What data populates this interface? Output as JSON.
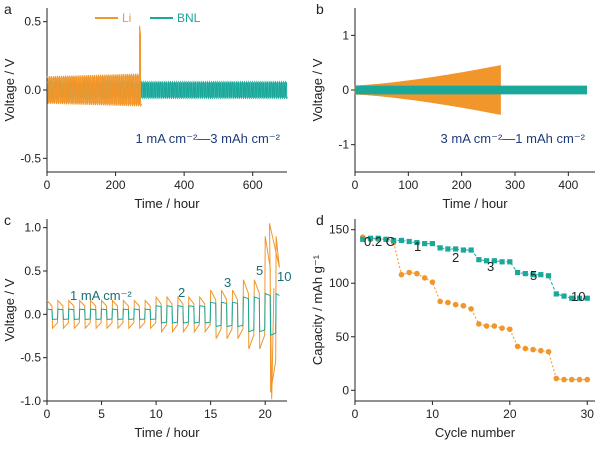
{
  "colors": {
    "li": "#f0962a",
    "bnl": "#1aa89a",
    "axis": "#222222",
    "condition_text": "#1f3a7a",
    "annotation_text": "#1a6e78"
  },
  "legend": {
    "li": "Li",
    "bnl": "BNL",
    "placement": "top-center"
  },
  "chart_data": [
    {
      "panel": "a",
      "type": "line",
      "xlabel": "Time / hour",
      "ylabel": "Voltage / V",
      "xlim": [
        0,
        700
      ],
      "ylim": [
        -0.6,
        0.6
      ],
      "xticks": [
        "0",
        "200",
        "400",
        "600"
      ],
      "yticks": [
        "-0.5",
        "0.0",
        "0.5"
      ],
      "condition": "1 mA cm⁻²—3 mAh cm⁻²",
      "series": [
        {
          "name": "Li",
          "end_hour": 275,
          "amplitude_start": 0.1,
          "amplitude_end": 0.12,
          "spike_hour": 272,
          "spike_value": 0.47
        },
        {
          "name": "BNL",
          "end_hour": 700,
          "amplitude": 0.06
        }
      ]
    },
    {
      "panel": "b",
      "type": "line",
      "xlabel": "Time / hour",
      "ylabel": "Voltage / V",
      "xlim": [
        0,
        450
      ],
      "ylim": [
        -1.5,
        1.5
      ],
      "xticks": [
        "0",
        "100",
        "200",
        "300",
        "400"
      ],
      "yticks": [
        "-1",
        "0",
        "1"
      ],
      "condition": "3 mA cm⁻²—1 mAh cm⁻²",
      "series": [
        {
          "name": "Li",
          "end_hour": 273,
          "amplitude_start": 0.08,
          "amplitude_end": 0.45
        },
        {
          "name": "BNL",
          "end_hour": 435,
          "amplitude": 0.08
        }
      ]
    },
    {
      "panel": "c",
      "type": "line",
      "xlabel": "Time / hour",
      "ylabel": "Voltage / V",
      "xlim": [
        0,
        22
      ],
      "ylim": [
        -1.0,
        1.1
      ],
      "xticks": [
        "0",
        "5",
        "10",
        "15",
        "20"
      ],
      "yticks": [
        "-1.0",
        "-0.5",
        "0.0",
        "0.5",
        "1.0"
      ],
      "annotations": [
        "1 mA cm⁻²",
        "2",
        "3",
        "5",
        "10"
      ],
      "rate_steps": [
        {
          "label": "1 mA cm⁻²",
          "start": 0,
          "end": 10,
          "li_amp": 0.16,
          "bnl_amp": 0.06
        },
        {
          "label": "2",
          "start": 10,
          "end": 15,
          "li_amp": 0.2,
          "bnl_amp": 0.1
        },
        {
          "label": "3",
          "start": 15,
          "end": 18,
          "li_amp": 0.28,
          "bnl_amp": 0.14
        },
        {
          "label": "5",
          "start": 18,
          "end": 20,
          "li_amp": 0.4,
          "bnl_amp": 0.2
        },
        {
          "label": "10",
          "start": 20,
          "end": 21.3,
          "li_amp": 0.9,
          "bnl_amp": 0.24
        }
      ]
    },
    {
      "panel": "d",
      "type": "scatter",
      "xlabel": "Cycle number",
      "ylabel": "Capacity / mAh g⁻¹",
      "xlim": [
        0,
        31
      ],
      "ylim": [
        -10,
        160
      ],
      "xticks": [
        "0",
        "10",
        "20",
        "30"
      ],
      "yticks": [
        "0",
        "50",
        "100",
        "150"
      ],
      "annotations": [
        "0.2 C",
        "1",
        "2",
        "3",
        "5",
        "10"
      ],
      "series": [
        {
          "name": "Li",
          "x": [
            1,
            2,
            3,
            4,
            5,
            6,
            7,
            8,
            9,
            10,
            11,
            12,
            13,
            14,
            15,
            16,
            17,
            18,
            19,
            20,
            21,
            22,
            23,
            24,
            25,
            26,
            27,
            28,
            29,
            30
          ],
          "values": [
            143,
            141,
            141,
            141,
            138,
            108,
            110,
            109,
            105,
            101,
            83,
            82,
            80,
            79,
            76,
            62,
            60,
            60,
            58,
            57,
            41,
            39,
            38,
            37,
            36,
            11,
            10,
            10,
            10,
            10
          ]
        },
        {
          "name": "BNL",
          "x": [
            1,
            2,
            3,
            4,
            5,
            6,
            7,
            8,
            9,
            10,
            11,
            12,
            13,
            14,
            15,
            16,
            17,
            18,
            19,
            20,
            21,
            22,
            23,
            24,
            25,
            26,
            27,
            28,
            29,
            30
          ],
          "values": [
            141,
            142,
            142,
            141,
            140,
            140,
            139,
            138,
            137,
            137,
            133,
            132,
            132,
            131,
            131,
            122,
            121,
            121,
            120,
            120,
            110,
            109,
            108,
            108,
            107,
            90,
            88,
            86,
            86,
            86
          ]
        }
      ]
    }
  ]
}
